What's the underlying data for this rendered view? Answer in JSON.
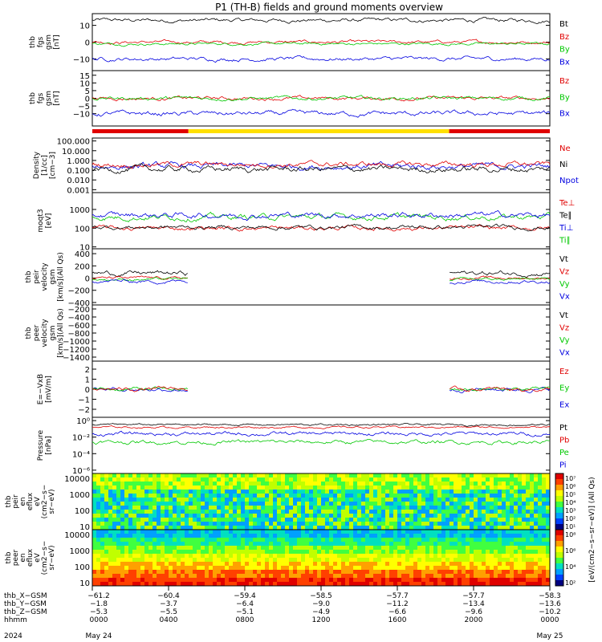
{
  "title": "P1 (TH-B) fields and ground moments overview",
  "panels": [
    {
      "id": "p1",
      "ylabel": [
        "thb",
        "fgs",
        "gsm",
        "[nT]"
      ],
      "ticks": [
        "10",
        "0",
        "−10"
      ],
      "tickvals": [
        10,
        0,
        -10
      ],
      "ylim": [
        -17,
        17
      ],
      "legend": [
        {
          "t": "Bt",
          "c": "#000000"
        },
        {
          "t": "Bz",
          "c": "#e00000"
        },
        {
          "t": "By",
          "c": "#00c800"
        },
        {
          "t": "Bx",
          "c": "#0000e0"
        }
      ],
      "series": [
        {
          "name": "Bt",
          "color": "#000000",
          "base": 13,
          "noise": 1.5
        },
        {
          "name": "Bz",
          "color": "#e00000",
          "base": 0,
          "noise": 1.2
        },
        {
          "name": "By",
          "color": "#00c800",
          "base": -1,
          "noise": 1.0
        },
        {
          "name": "Bx",
          "color": "#0000e0",
          "base": -10,
          "noise": 1.5
        }
      ]
    },
    {
      "id": "p2",
      "ylabel": [
        "thb",
        "fgs",
        "gsm",
        "[nT]"
      ],
      "ticks": [
        "15",
        "10",
        "5",
        "0",
        "−5",
        "−10"
      ],
      "tickvals": [
        15,
        10,
        5,
        0,
        -5,
        -10
      ],
      "ylim": [
        -18,
        18
      ],
      "legend": [
        {
          "t": "Bz",
          "c": "#e00000"
        },
        {
          "t": "By",
          "c": "#00c800"
        },
        {
          "t": "Bx",
          "c": "#0000e0"
        }
      ],
      "series": [
        {
          "name": "Bz",
          "color": "#e00000",
          "base": 0,
          "noise": 1.5
        },
        {
          "name": "By",
          "color": "#00c800",
          "base": 0,
          "noise": 1.5
        },
        {
          "name": "Bx",
          "color": "#0000e0",
          "base": -10,
          "noise": 2
        }
      ]
    },
    {
      "id": "p3",
      "ylabel": [
        "Density",
        "[1/cc]",
        "[cm−3]"
      ],
      "ticks": [
        "100.000",
        "10.000",
        "1.000",
        "0.100",
        "0.010",
        "0.001"
      ],
      "tickvals": [
        5,
        4,
        3,
        2,
        1,
        0
      ],
      "ylim": [
        -0.3,
        5.3
      ],
      "legend": [
        {
          "t": "Ne",
          "c": "#e00000"
        },
        {
          "t": "Ni",
          "c": "#000000"
        },
        {
          "t": "Npot",
          "c": "#0000e0"
        }
      ],
      "series": [
        {
          "name": "Npot",
          "color": "#0000e0",
          "base": 2.4,
          "noise": 0.4
        },
        {
          "name": "Ne",
          "color": "#e00000",
          "base": 2.6,
          "noise": 0.35
        },
        {
          "name": "Ni",
          "color": "#000000",
          "base": 2.1,
          "noise": 0.4
        }
      ]
    },
    {
      "id": "p4",
      "ylabel": [
        "moqt3",
        "[eV]"
      ],
      "ticks": [
        "1000",
        "100",
        "10"
      ],
      "tickvals": [
        3,
        2,
        1
      ],
      "ylim": [
        0.9,
        3.9
      ],
      "legend": [
        {
          "t": "Te⊥",
          "c": "#e00000"
        },
        {
          "t": "Te∥",
          "c": "#000000"
        },
        {
          "t": "Ti⊥",
          "c": "#0000e0"
        },
        {
          "t": "Ti∥",
          "c": "#00c800"
        }
      ],
      "series": [
        {
          "name": "Ti∥",
          "color": "#00c800",
          "base": 2.6,
          "noise": 0.2
        },
        {
          "name": "Ti⊥",
          "color": "#0000e0",
          "base": 2.7,
          "noise": 0.2
        },
        {
          "name": "Te⊥",
          "color": "#e00000",
          "base": 2.0,
          "noise": 0.15
        },
        {
          "name": "Te∥",
          "color": "#000000",
          "base": 2.05,
          "noise": 0.15
        }
      ]
    },
    {
      "id": "p5",
      "ylabel": [
        "thb",
        "peir",
        "velocity",
        "gsm",
        "[km/s](All Qs)"
      ],
      "ticks": [
        "400",
        "200",
        "0",
        "−200",
        "−400"
      ],
      "tickvals": [
        400,
        200,
        0,
        -200,
        -400
      ],
      "ylim": [
        -440,
        480
      ],
      "legend": [
        {
          "t": "Vt",
          "c": "#000000"
        },
        {
          "t": "Vz",
          "c": "#e00000"
        },
        {
          "t": "Vy",
          "c": "#00c800"
        },
        {
          "t": "Vx",
          "c": "#0000e0"
        }
      ],
      "series": [
        {
          "name": "Vt",
          "color": "#000000",
          "base": 80,
          "noise": 50
        },
        {
          "name": "Vz",
          "color": "#e00000",
          "base": 0,
          "noise": 30
        },
        {
          "name": "Vy",
          "color": "#00c800",
          "base": -20,
          "noise": 30
        },
        {
          "name": "Vx",
          "color": "#0000e0",
          "base": -50,
          "noise": 40
        }
      ],
      "gap": [
        0.21,
        0.78
      ]
    },
    {
      "id": "p6",
      "ylabel": [
        "thb",
        "peer",
        "velocity",
        "gsm",
        "[km/s](All Qs)"
      ],
      "ticks": [
        "−200",
        "−400",
        "−600",
        "−800",
        "−1000",
        "−1200",
        "−1400"
      ],
      "tickvals": [
        -200,
        -400,
        -600,
        -800,
        -1000,
        -1200,
        -1400
      ],
      "ylim": [
        -1500,
        -100
      ],
      "legend": [
        {
          "t": "Vt",
          "c": "#000000"
        },
        {
          "t": "Vz",
          "c": "#e00000"
        },
        {
          "t": "Vy",
          "c": "#00c800"
        },
        {
          "t": "Vx",
          "c": "#0000e0"
        }
      ],
      "series": []
    },
    {
      "id": "p7",
      "ylabel": [
        "E=−VxB",
        "[mV/m]"
      ],
      "ticks": [
        "2",
        "1",
        "0",
        "−1",
        "−2"
      ],
      "tickvals": [
        2,
        1,
        0,
        -1,
        -2
      ],
      "ylim": [
        -2.8,
        2.8
      ],
      "legend": [
        {
          "t": "Ez",
          "c": "#e00000"
        },
        {
          "t": "Ey",
          "c": "#00c800"
        },
        {
          "t": "Ex",
          "c": "#0000e0"
        }
      ],
      "series": [
        {
          "name": "Ex",
          "color": "#0000e0",
          "base": 0,
          "noise": 0.25
        },
        {
          "name": "Ey",
          "color": "#00c800",
          "base": 0,
          "noise": 0.25
        },
        {
          "name": "Ez",
          "color": "#e00000",
          "base": 0,
          "noise": 0.25
        }
      ],
      "gap": [
        0.21,
        0.78
      ]
    },
    {
      "id": "p8",
      "ylabel": [
        "Pressure",
        "[nPa]"
      ],
      "ticks": [
        "10⁰",
        "10⁻²",
        "10⁻⁴",
        "10⁻⁶"
      ],
      "tickvals": [
        0,
        -2,
        -4,
        -6
      ],
      "ylim": [
        -6.4,
        0.4
      ],
      "legend": [
        {
          "t": "Pt",
          "c": "#000000"
        },
        {
          "t": "Pb",
          "c": "#e00000"
        },
        {
          "t": "Pe",
          "c": "#00c800"
        },
        {
          "t": "Pi",
          "c": "#0000e0"
        }
      ],
      "series": [
        {
          "name": "Pt",
          "color": "#000000",
          "base": -0.5,
          "noise": 0.15
        },
        {
          "name": "Pb",
          "color": "#e00000",
          "base": -0.8,
          "noise": 0.15
        },
        {
          "name": "Pi",
          "color": "#0000e0",
          "base": -1.6,
          "noise": 0.3
        },
        {
          "name": "Pe",
          "color": "#00c800",
          "base": -2.6,
          "noise": 0.3
        }
      ]
    }
  ],
  "spectrograms": [
    {
      "id": "s1",
      "ylabel": [
        "thb",
        "peir",
        "en",
        "eflux",
        "eV",
        "(cm2−s−",
        "sr−eV)"
      ],
      "ticks": [
        "10000",
        "1000",
        "100",
        "10"
      ]
    },
    {
      "id": "s2",
      "ylabel": [
        "thb",
        "peer",
        "en",
        "eflux",
        "eV",
        "(cm2−s−",
        "sr−eV)"
      ],
      "ticks": [
        "10000",
        "1000",
        "100",
        "10"
      ]
    }
  ],
  "colorbar": {
    "label": "[eV/(cm2−s−sr−eV)] (All Qs)",
    "ticks1": [
      "10⁷",
      "10⁶",
      "10⁵",
      "10⁴",
      "10³",
      "10²",
      "10¹"
    ],
    "ticks2": [
      "10⁸",
      "10⁶",
      "10⁴",
      "10²"
    ]
  },
  "modebar": [
    {
      "from": 0,
      "to": 0.21,
      "color": "#e00000"
    },
    {
      "from": 0.21,
      "to": 0.78,
      "color": "#ffe000"
    },
    {
      "from": 0.78,
      "to": 1,
      "color": "#e00000"
    }
  ],
  "xaxis": {
    "rows": [
      {
        "label": "thb_X−GSM",
        "vals": [
          "−61.2",
          "−60.4",
          "−59.4",
          "−58.5",
          "−57.7",
          "−57.7",
          "−58.3"
        ]
      },
      {
        "label": "thb_Y−GSM",
        "vals": [
          "−1.8",
          "−3.7",
          "−6.4",
          "−9.0",
          "−11.2",
          "−13.4",
          "−13.6"
        ]
      },
      {
        "label": "thb_Z−GSM",
        "vals": [
          "−5.3",
          "−5.5",
          "−5.1",
          "−4.9",
          "−6.6",
          "−9.6",
          "−10.2"
        ]
      },
      {
        "label": "hhmm",
        "vals": [
          "0000",
          "0400",
          "0800",
          "1200",
          "1600",
          "2000",
          "0000"
        ]
      }
    ],
    "year": "2024",
    "dates": [
      {
        "pos": 0,
        "t": "May 24"
      },
      {
        "pos": 6,
        "t": "May 25"
      }
    ]
  }
}
